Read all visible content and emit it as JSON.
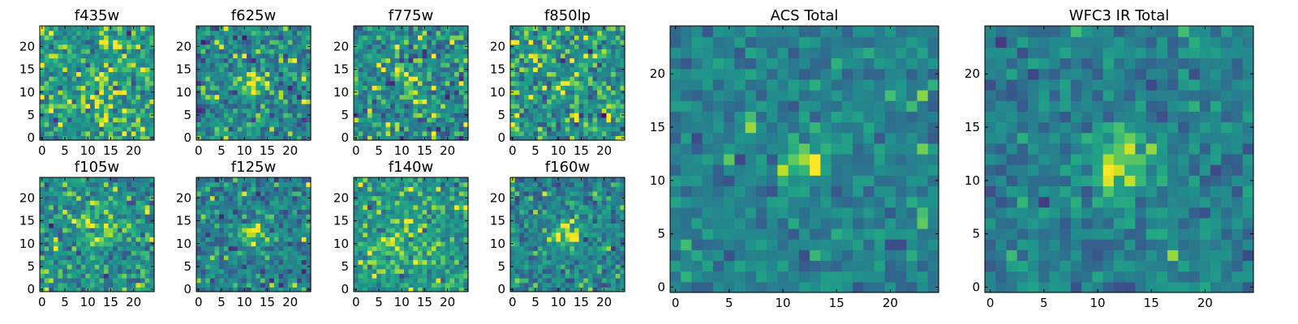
{
  "chart_data": [
    {
      "type": "heatmap",
      "title": "f435w",
      "xticks": [
        "0",
        "5",
        "10",
        "15",
        "20"
      ],
      "yticks": [
        "0",
        "5",
        "10",
        "15",
        "20"
      ],
      "xlim": [
        -0.5,
        24.5
      ],
      "ylim": [
        -0.5,
        24.5
      ],
      "grid_size": 25,
      "colormap": "viridis",
      "seed": 11,
      "peak": {
        "x": 12,
        "y": 12,
        "sigma": 2.2,
        "amp": 0.1
      },
      "noise_sd": 0.16,
      "base": 0.68
    },
    {
      "type": "heatmap",
      "title": "f625w",
      "xticks": [
        "0",
        "5",
        "10",
        "15",
        "20"
      ],
      "yticks": [
        "0",
        "5",
        "10",
        "15",
        "20"
      ],
      "xlim": [
        -0.5,
        24.5
      ],
      "ylim": [
        -0.5,
        24.5
      ],
      "grid_size": 25,
      "colormap": "viridis",
      "seed": 23,
      "peak": {
        "x": 12,
        "y": 12,
        "sigma": 1.6,
        "amp": 0.35
      },
      "noise_sd": 0.17,
      "base": 0.58
    },
    {
      "type": "heatmap",
      "title": "f775w",
      "xticks": [
        "0",
        "5",
        "10",
        "15",
        "20"
      ],
      "yticks": [
        "0",
        "5",
        "10",
        "15",
        "20"
      ],
      "xlim": [
        -0.5,
        24.5
      ],
      "ylim": [
        -0.5,
        24.5
      ],
      "grid_size": 25,
      "colormap": "viridis",
      "seed": 37,
      "peak": {
        "x": 12,
        "y": 12,
        "sigma": 1.8,
        "amp": 0.2
      },
      "noise_sd": 0.18,
      "base": 0.62
    },
    {
      "type": "heatmap",
      "title": "f850lp",
      "xticks": [
        "0",
        "5",
        "10",
        "15",
        "20"
      ],
      "yticks": [
        "0",
        "5",
        "10",
        "15",
        "20"
      ],
      "xlim": [
        -0.5,
        24.5
      ],
      "ylim": [
        -0.5,
        24.5
      ],
      "grid_size": 25,
      "colormap": "viridis",
      "seed": 41,
      "peak": {
        "x": 12,
        "y": 12,
        "sigma": 2.0,
        "amp": 0.12
      },
      "noise_sd": 0.18,
      "base": 0.66
    },
    {
      "type": "heatmap",
      "title": "f105w",
      "xticks": [
        "0",
        "5",
        "10",
        "15",
        "20"
      ],
      "yticks": [
        "0",
        "5",
        "10",
        "15",
        "20"
      ],
      "xlim": [
        -0.5,
        24.5
      ],
      "ylim": [
        -0.5,
        24.5
      ],
      "grid_size": 25,
      "colormap": "viridis",
      "seed": 53,
      "peak": {
        "x": 13,
        "y": 12,
        "sigma": 3.0,
        "amp": 0.22
      },
      "noise_sd": 0.15,
      "base": 0.62
    },
    {
      "type": "heatmap",
      "title": "f125w",
      "xticks": [
        "0",
        "5",
        "10",
        "15",
        "20"
      ],
      "yticks": [
        "0",
        "5",
        "10",
        "15",
        "20"
      ],
      "xlim": [
        -0.5,
        24.5
      ],
      "ylim": [
        -0.5,
        24.5
      ],
      "grid_size": 25,
      "colormap": "viridis",
      "seed": 67,
      "peak": {
        "x": 12,
        "y": 12,
        "sigma": 2.0,
        "amp": 0.4
      },
      "noise_sd": 0.15,
      "base": 0.55
    },
    {
      "type": "heatmap",
      "title": "f140w",
      "xticks": [
        "0",
        "5",
        "10",
        "15",
        "20"
      ],
      "yticks": [
        "0",
        "5",
        "10",
        "15",
        "20"
      ],
      "xlim": [
        -0.5,
        24.5
      ],
      "ylim": [
        -0.5,
        24.5
      ],
      "grid_size": 25,
      "colormap": "viridis",
      "seed": 71,
      "peak": {
        "x": 10,
        "y": 10,
        "sigma": 4.0,
        "amp": 0.2
      },
      "noise_sd": 0.14,
      "base": 0.66
    },
    {
      "type": "heatmap",
      "title": "f160w",
      "xticks": [
        "0",
        "5",
        "10",
        "15",
        "20"
      ],
      "yticks": [
        "0",
        "5",
        "10",
        "15",
        "20"
      ],
      "xlim": [
        -0.5,
        24.5
      ],
      "ylim": [
        -0.5,
        24.5
      ],
      "grid_size": 25,
      "colormap": "viridis",
      "seed": 83,
      "peak": {
        "x": 12,
        "y": 12,
        "sigma": 2.3,
        "amp": 0.35
      },
      "noise_sd": 0.15,
      "base": 0.57
    },
    {
      "type": "heatmap",
      "title": "ACS Total",
      "xticks": [
        "0",
        "5",
        "10",
        "15",
        "20"
      ],
      "yticks": [
        "0",
        "5",
        "10",
        "15",
        "20"
      ],
      "xlim": [
        -0.5,
        24.5
      ],
      "ylim": [
        -0.5,
        24.5
      ],
      "grid_size": 25,
      "colormap": "viridis",
      "seed": 97,
      "peak": {
        "x": 12,
        "y": 12,
        "sigma": 1.6,
        "amp": 0.4
      },
      "noise_sd": 0.11,
      "base": 0.55
    },
    {
      "type": "heatmap",
      "title": "WFC3 IR Total",
      "xticks": [
        "0",
        "5",
        "10",
        "15",
        "20"
      ],
      "yticks": [
        "0",
        "5",
        "10",
        "15",
        "20"
      ],
      "xlim": [
        -0.5,
        24.5
      ],
      "ylim": [
        -0.5,
        24.5
      ],
      "grid_size": 25,
      "colormap": "viridis",
      "seed": 101,
      "peak": {
        "x": 12,
        "y": 12,
        "sigma": 2.0,
        "amp": 0.42
      },
      "noise_sd": 0.11,
      "base": 0.55
    }
  ]
}
